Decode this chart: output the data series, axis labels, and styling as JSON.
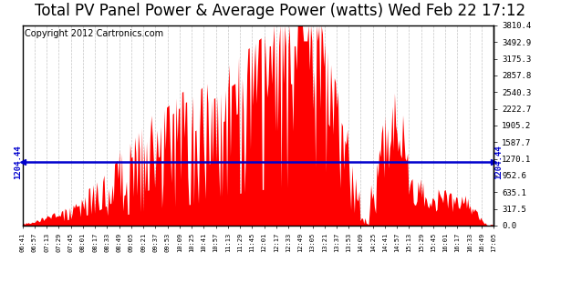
{
  "title": "Total PV Panel Power & Average Power (watts) Wed Feb 22 17:12",
  "copyright_text": "Copyright 2012 Cartronics.com",
  "average_power": 1204.44,
  "y_max": 3810.4,
  "y_min": 0.0,
  "ytick_labels": [
    "0.0",
    "317.5",
    "635.1",
    "952.6",
    "1270.1",
    "1587.7",
    "1905.2",
    "2222.7",
    "2540.3",
    "2857.8",
    "3175.3",
    "3492.9",
    "3810.4"
  ],
  "ytick_values": [
    0.0,
    317.5,
    635.1,
    952.6,
    1270.1,
    1587.7,
    1905.2,
    2222.7,
    2540.3,
    2857.8,
    3175.3,
    3492.9,
    3810.4
  ],
  "bar_color": "#FF0000",
  "avg_line_color": "#0000CD",
  "background_color": "#FFFFFF",
  "plot_bg_color": "#FFFFFF",
  "grid_color": "#C0C0C0",
  "title_fontsize": 12,
  "copyright_fontsize": 7,
  "xtick_labels": [
    "06:41",
    "06:57",
    "07:13",
    "07:29",
    "07:45",
    "08:01",
    "08:17",
    "08:33",
    "08:49",
    "09:05",
    "09:21",
    "09:37",
    "09:53",
    "10:09",
    "10:25",
    "10:41",
    "10:57",
    "11:13",
    "11:29",
    "11:45",
    "12:01",
    "12:17",
    "12:33",
    "12:49",
    "13:05",
    "13:21",
    "13:37",
    "13:53",
    "14:09",
    "14:25",
    "14:41",
    "14:57",
    "15:13",
    "15:29",
    "15:45",
    "16:01",
    "16:17",
    "16:33",
    "16:49",
    "17:05"
  ],
  "num_points": 400,
  "seed": 42
}
